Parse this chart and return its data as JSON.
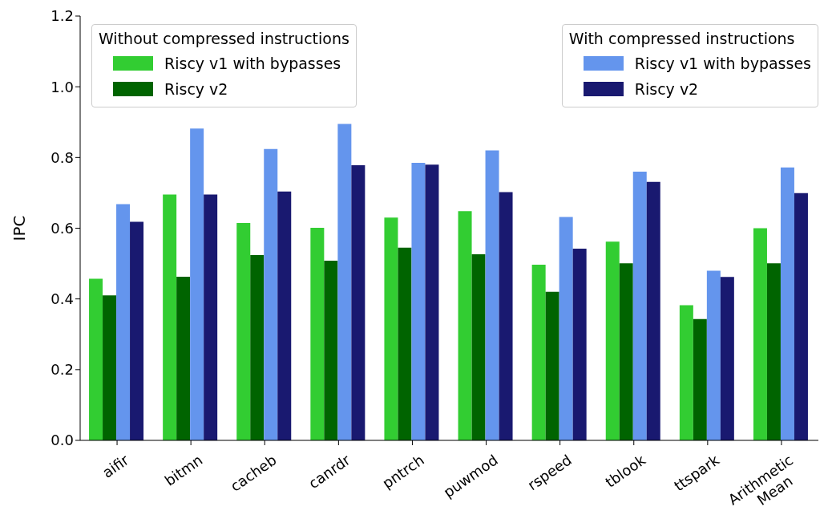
{
  "chart_data": {
    "type": "bar",
    "ylabel": "IPC",
    "categories": [
      "aifir",
      "bitmn",
      "cacheb",
      "canrdr",
      "pntrch",
      "puwmod",
      "rspeed",
      "tblook",
      "ttspark",
      "Arithmetic\nMean"
    ],
    "series": [
      {
        "name": "Riscy v1 with bypasses",
        "color": "#32cd32",
        "values": [
          0.457,
          0.695,
          0.615,
          0.601,
          0.63,
          0.648,
          0.497,
          0.562,
          0.382,
          0.6
        ]
      },
      {
        "name": "Riscy v2",
        "color": "#006400",
        "values": [
          0.41,
          0.463,
          0.524,
          0.508,
          0.545,
          0.526,
          0.42,
          0.501,
          0.343,
          0.501
        ]
      },
      {
        "name": "Riscy v1 with bypasses",
        "color": "#6495ed",
        "values": [
          0.668,
          0.882,
          0.824,
          0.895,
          0.785,
          0.82,
          0.632,
          0.76,
          0.48,
          0.772
        ]
      },
      {
        "name": "Riscy v2",
        "color": "#191970",
        "values": [
          0.618,
          0.695,
          0.704,
          0.778,
          0.78,
          0.702,
          0.542,
          0.731,
          0.462,
          0.699
        ]
      }
    ],
    "annotations": [
      "Without compressed instructions",
      "With compressed instructions"
    ],
    "legend": "top",
    "ylim": [
      0,
      1.2
    ],
    "yticks": [
      {
        "value": 0,
        "label": "0.0"
      },
      0.2,
      0.4,
      0.6,
      0.8,
      {
        "value": 1,
        "label": "1.0"
      },
      1.2
    ]
  }
}
